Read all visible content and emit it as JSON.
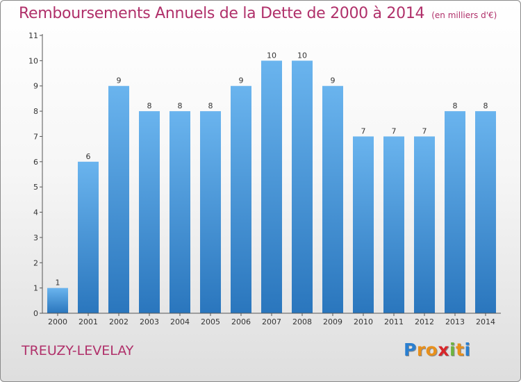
{
  "chart_data": {
    "type": "bar",
    "title": "Remboursements Annuels de la Dette de 2000 à 2014",
    "unit": "(en milliers d'€)",
    "xlabel": "",
    "ylabel": "",
    "categories": [
      "2000",
      "2001",
      "2002",
      "2003",
      "2004",
      "2005",
      "2006",
      "2007",
      "2008",
      "2009",
      "2010",
      "2011",
      "2012",
      "2013",
      "2014"
    ],
    "values": [
      1,
      6,
      9,
      8,
      8,
      8,
      9,
      10,
      10,
      9,
      7,
      7,
      7,
      8,
      8
    ],
    "ylim": [
      0,
      11
    ],
    "yticks": [
      0,
      1,
      2,
      3,
      4,
      5,
      6,
      7,
      8,
      9,
      10,
      11
    ],
    "grid": false,
    "legend": "none",
    "bar_color": "#4a9be0",
    "title_color": "#b0306a"
  },
  "commune": "TREUZY-LEVELAY",
  "logo": {
    "letters": [
      "P",
      "r",
      "o",
      "x",
      "i",
      "t",
      "i"
    ],
    "colors": [
      "#2a7fd0",
      "#e8901c",
      "#e8901c",
      "#d8262a",
      "#6db33f",
      "#e8901c",
      "#2a7fd0"
    ]
  }
}
